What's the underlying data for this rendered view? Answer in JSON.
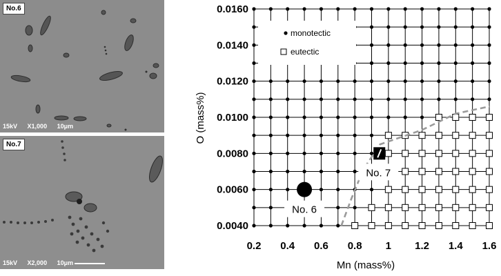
{
  "micrographs": [
    {
      "label": "No.6",
      "voltage": "15kV",
      "magnification": "X1,000",
      "scale": "10μm"
    },
    {
      "label": "No.7",
      "voltage": "15kV",
      "magnification": "X2,000",
      "scale": "10μm"
    }
  ],
  "chart_data": {
    "type": "scatter",
    "xlabel": "Mn (mass%)",
    "ylabel": "O (mass%)",
    "xlim": [
      0.2,
      1.6
    ],
    "ylim": [
      0.004,
      0.016
    ],
    "xticks": [
      0.2,
      0.4,
      0.6,
      0.8,
      1.0,
      1.2,
      1.4,
      1.6
    ],
    "xtick_labels": [
      "0.2",
      "0.4",
      "0.6",
      "0.8",
      "1",
      "1.2",
      "1.4",
      "1.6"
    ],
    "yticks": [
      0.004,
      0.006,
      0.008,
      0.01,
      0.012,
      0.014,
      0.016
    ],
    "ytick_labels": [
      "0.0040",
      "0.0060",
      "0.0080",
      "0.0100",
      "0.0120",
      "0.0140",
      "0.0160"
    ],
    "x_grid": [
      0.2,
      0.3,
      0.4,
      0.5,
      0.6,
      0.7,
      0.8,
      0.9,
      1.0,
      1.1,
      1.2,
      1.3,
      1.4,
      1.5,
      1.6
    ],
    "y_grid": [
      0.004,
      0.005,
      0.006,
      0.007,
      0.008,
      0.009,
      0.01,
      0.011,
      0.012,
      0.013,
      0.014,
      0.015,
      0.016
    ],
    "legend": {
      "position": "top-left",
      "monotectic": "monotectic",
      "eutectic": "eutectic"
    },
    "eutectic_points": [
      [
        0.8,
        0.004
      ],
      [
        0.9,
        0.004
      ],
      [
        1.0,
        0.004
      ],
      [
        1.1,
        0.004
      ],
      [
        1.2,
        0.004
      ],
      [
        1.3,
        0.004
      ],
      [
        1.4,
        0.004
      ],
      [
        1.5,
        0.004
      ],
      [
        1.6,
        0.004
      ],
      [
        0.9,
        0.005
      ],
      [
        1.0,
        0.005
      ],
      [
        1.1,
        0.005
      ],
      [
        1.2,
        0.005
      ],
      [
        1.3,
        0.005
      ],
      [
        1.4,
        0.005
      ],
      [
        1.5,
        0.005
      ],
      [
        1.6,
        0.005
      ],
      [
        1.0,
        0.006
      ],
      [
        1.1,
        0.006
      ],
      [
        1.2,
        0.006
      ],
      [
        1.3,
        0.006
      ],
      [
        1.4,
        0.006
      ],
      [
        1.5,
        0.006
      ],
      [
        1.6,
        0.006
      ],
      [
        1.0,
        0.007
      ],
      [
        1.1,
        0.007
      ],
      [
        1.2,
        0.007
      ],
      [
        1.3,
        0.007
      ],
      [
        1.4,
        0.007
      ],
      [
        1.5,
        0.007
      ],
      [
        1.6,
        0.007
      ],
      [
        1.0,
        0.008
      ],
      [
        1.1,
        0.008
      ],
      [
        1.2,
        0.008
      ],
      [
        1.3,
        0.008
      ],
      [
        1.4,
        0.008
      ],
      [
        1.5,
        0.008
      ],
      [
        1.6,
        0.008
      ],
      [
        1.0,
        0.009
      ],
      [
        1.1,
        0.009
      ],
      [
        1.2,
        0.009
      ],
      [
        1.3,
        0.009
      ],
      [
        1.4,
        0.009
      ],
      [
        1.5,
        0.009
      ],
      [
        1.6,
        0.009
      ],
      [
        1.3,
        0.01
      ],
      [
        1.4,
        0.01
      ],
      [
        1.5,
        0.01
      ],
      [
        1.6,
        0.01
      ]
    ],
    "boundary_line": [
      [
        0.72,
        0.004
      ],
      [
        0.78,
        0.0055
      ],
      [
        0.85,
        0.0071
      ],
      [
        0.95,
        0.0085
      ],
      [
        1.2,
        0.0093
      ],
      [
        1.4,
        0.0102
      ],
      [
        1.6,
        0.0106
      ]
    ],
    "samples": [
      {
        "label": "No. 6",
        "x": 0.5,
        "y": 0.006,
        "marker": "circle"
      },
      {
        "label": "No. 7",
        "x": 0.94,
        "y": 0.008,
        "marker": "square"
      }
    ],
    "colors": {
      "boundary": "#9a9a9a",
      "grid": "#000000",
      "marker": "#000000"
    }
  }
}
